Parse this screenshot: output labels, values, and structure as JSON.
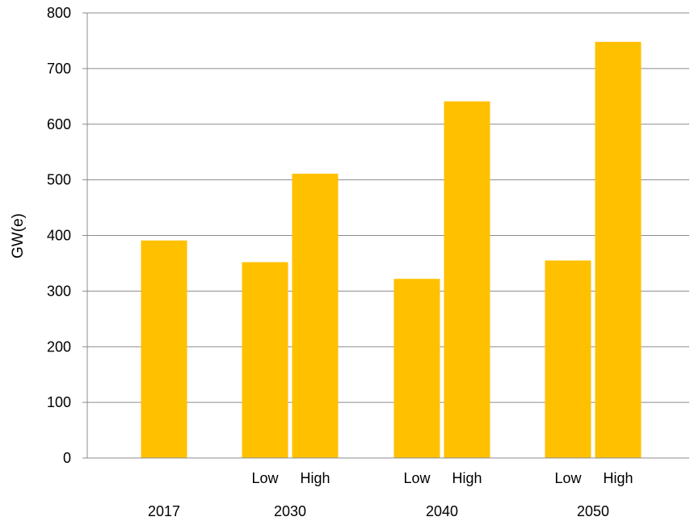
{
  "chart_data": {
    "type": "bar",
    "ylabel": "GW(e)",
    "ylim": [
      0,
      800
    ],
    "yticks": [
      0,
      100,
      200,
      300,
      400,
      500,
      600,
      700,
      800
    ],
    "grid": true,
    "bar_color": "#FFC000",
    "bars": [
      {
        "year": "2017",
        "scenario": "",
        "value": 391
      },
      {
        "year": "2030",
        "scenario": "Low",
        "value": 352
      },
      {
        "year": "2030",
        "scenario": "High",
        "value": 511
      },
      {
        "year": "2040",
        "scenario": "Low",
        "value": 322
      },
      {
        "year": "2040",
        "scenario": "High",
        "value": 641
      },
      {
        "year": "2050",
        "scenario": "Low",
        "value": 355
      },
      {
        "year": "2050",
        "scenario": "High",
        "value": 748
      }
    ],
    "year_labels": [
      "2017",
      "2030",
      "2040",
      "2050"
    ]
  }
}
